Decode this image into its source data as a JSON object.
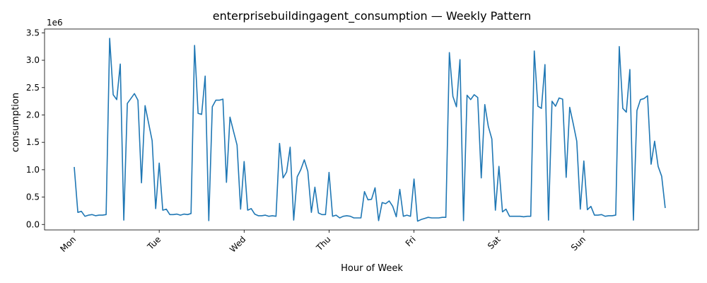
{
  "chart_data": {
    "type": "line",
    "title": "enterprisebuildingagent_consumption — Weekly Pattern",
    "xlabel": "Hour of Week",
    "ylabel": "consumption",
    "y_offset_label": "1e6",
    "xlim": [
      -8.4,
      176.4
    ],
    "ylim": [
      -0.1,
      3.57
    ],
    "x_ticks": [
      {
        "value": 0,
        "label": "Mon"
      },
      {
        "value": 24,
        "label": "Tue"
      },
      {
        "value": 48,
        "label": "Wed"
      },
      {
        "value": 72,
        "label": "Thu"
      },
      {
        "value": 96,
        "label": "Fri"
      },
      {
        "value": 120,
        "label": "Sat"
      },
      {
        "value": 144,
        "label": "Sun"
      }
    ],
    "y_ticks": [
      {
        "value": 0.0,
        "label": "0.0"
      },
      {
        "value": 0.5,
        "label": "0.5"
      },
      {
        "value": 1.0,
        "label": "1.0"
      },
      {
        "value": 1.5,
        "label": "1.5"
      },
      {
        "value": 2.0,
        "label": "2.0"
      },
      {
        "value": 2.5,
        "label": "2.5"
      },
      {
        "value": 3.0,
        "label": "3.0"
      },
      {
        "value": 3.5,
        "label": "3.5"
      }
    ],
    "grid": false,
    "series": [
      {
        "color": "#1f77b4",
        "x": [
          0,
          1,
          2,
          3,
          4,
          5,
          6,
          7,
          8,
          9,
          10,
          11,
          12,
          13,
          14,
          15,
          16,
          17,
          18,
          19,
          20,
          21,
          22,
          23,
          24,
          25,
          26,
          27,
          28,
          29,
          30,
          31,
          32,
          33,
          34,
          35,
          36,
          37,
          38,
          39,
          40,
          41,
          42,
          43,
          44,
          45,
          46,
          47,
          48,
          49,
          50,
          51,
          52,
          53,
          54,
          55,
          56,
          57,
          58,
          59,
          60,
          61,
          62,
          63,
          64,
          65,
          66,
          67,
          68,
          69,
          70,
          71,
          72,
          73,
          74,
          75,
          76,
          77,
          78,
          79,
          80,
          81,
          82,
          83,
          84,
          85,
          86,
          87,
          88,
          89,
          90,
          91,
          92,
          93,
          94,
          95,
          96,
          97,
          98,
          99,
          100,
          101,
          102,
          103,
          104,
          105,
          106,
          107,
          108,
          109,
          110,
          111,
          112,
          113,
          114,
          115,
          116,
          117,
          118,
          119,
          120,
          121,
          122,
          123,
          124,
          125,
          126,
          127,
          128,
          129,
          130,
          131,
          132,
          133,
          134,
          135,
          136,
          137,
          138,
          139,
          140,
          141,
          142,
          143,
          144,
          145,
          146,
          147,
          148,
          149,
          150,
          151,
          152,
          153,
          154,
          155,
          156,
          157,
          158,
          159,
          160,
          161,
          162,
          163,
          164,
          165,
          166,
          167
        ],
        "values": [
          1.05,
          0.22,
          0.24,
          0.15,
          0.17,
          0.18,
          0.16,
          0.17,
          0.17,
          0.18,
          3.4,
          2.37,
          2.28,
          2.93,
          0.08,
          2.21,
          2.3,
          2.39,
          2.27,
          0.76,
          2.17,
          1.85,
          1.53,
          0.29,
          1.12,
          0.26,
          0.28,
          0.18,
          0.18,
          0.19,
          0.17,
          0.19,
          0.18,
          0.2,
          3.27,
          2.03,
          2.01,
          2.71,
          0.07,
          2.15,
          2.27,
          2.27,
          2.29,
          0.77,
          1.96,
          1.7,
          1.45,
          0.28,
          1.15,
          0.26,
          0.29,
          0.19,
          0.16,
          0.16,
          0.17,
          0.15,
          0.16,
          0.15,
          1.48,
          0.85,
          0.96,
          1.41,
          0.08,
          0.87,
          1.0,
          1.18,
          0.97,
          0.22,
          0.68,
          0.21,
          0.18,
          0.18,
          0.95,
          0.15,
          0.17,
          0.12,
          0.15,
          0.16,
          0.15,
          0.12,
          0.12,
          0.12,
          0.6,
          0.45,
          0.46,
          0.67,
          0.07,
          0.4,
          0.38,
          0.43,
          0.33,
          0.14,
          0.64,
          0.15,
          0.17,
          0.15,
          0.83,
          0.06,
          0.09,
          0.11,
          0.13,
          0.12,
          0.12,
          0.12,
          0.13,
          0.13,
          3.14,
          2.34,
          2.15,
          3.01,
          0.07,
          2.36,
          2.28,
          2.37,
          2.32,
          0.85,
          2.19,
          1.79,
          1.56,
          0.26,
          1.06,
          0.23,
          0.28,
          0.15,
          0.15,
          0.15,
          0.15,
          0.14,
          0.15,
          0.15,
          3.17,
          2.16,
          2.12,
          2.92,
          0.08,
          2.25,
          2.16,
          2.31,
          2.29,
          0.86,
          2.14,
          1.84,
          1.52,
          0.28,
          1.16,
          0.27,
          0.33,
          0.17,
          0.17,
          0.18,
          0.15,
          0.16,
          0.16,
          0.17,
          3.25,
          2.12,
          2.05,
          2.83,
          0.08,
          2.08,
          2.28,
          2.3,
          2.35,
          1.1,
          1.52,
          1.06,
          0.88,
          0.3
        ]
      }
    ]
  }
}
